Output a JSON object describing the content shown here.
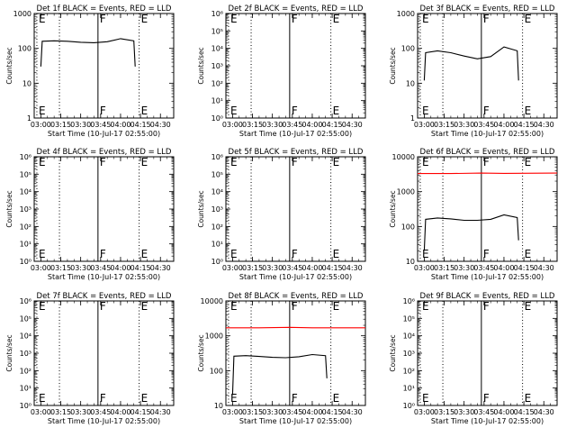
{
  "figure": {
    "x_tick_labels": [
      "03:00",
      "03:15",
      "03:30",
      "03:45",
      "04:00",
      "04:15",
      "04:30"
    ],
    "x_label": "Start Time (10-Jul-17 02:55:00)",
    "y_label": "Counts/sec",
    "colors": {
      "events": "#000000",
      "lld": "#ff0000"
    }
  },
  "chart_data": [
    {
      "type": "line",
      "title": "Det 1f BLACK = Events, RED = LLD",
      "xlabel": "Start Time (10-Jul-17 02:55:00)",
      "ylabel": "Counts/sec",
      "scale": "log",
      "xlim": [
        "02:55",
        "04:40"
      ],
      "ylim": [
        1,
        1000
      ],
      "y_tick_labels": [
        "1",
        "10",
        "100",
        "1000"
      ],
      "markers": [
        {
          "time": "02:57",
          "label": "E",
          "style": "dotted"
        },
        {
          "time": "03:14",
          "label": "",
          "style": "dotted"
        },
        {
          "time": "03:43",
          "label": "F",
          "style": "solid"
        },
        {
          "time": "04:14",
          "label": "E",
          "style": "dotted"
        }
      ],
      "series": [
        {
          "name": "Events",
          "color": "#000000",
          "x": [
            "03:00",
            "03:01",
            "03:10",
            "03:20",
            "03:30",
            "03:40",
            "03:50",
            "04:00",
            "04:10",
            "04:11"
          ],
          "y": [
            30,
            160,
            165,
            160,
            150,
            145,
            155,
            190,
            165,
            30
          ]
        }
      ]
    },
    {
      "type": "line",
      "title": "Det 2f BLACK = Events, RED = LLD",
      "xlabel": "Start Time (10-Jul-17 02:55:00)",
      "ylabel": "Counts/sec",
      "scale": "log",
      "xlim": [
        "02:55",
        "04:40"
      ],
      "ylim": [
        1,
        1000000
      ],
      "y_tick_labels": [
        "10⁰",
        "10¹",
        "10²",
        "10³",
        "10⁴",
        "10⁵",
        "10⁶"
      ],
      "markers": [
        {
          "time": "02:57",
          "label": "E",
          "style": "dotted"
        },
        {
          "time": "03:14",
          "label": "",
          "style": "dotted"
        },
        {
          "time": "03:43",
          "label": "F",
          "style": "solid"
        },
        {
          "time": "04:14",
          "label": "E",
          "style": "dotted"
        }
      ],
      "series": []
    },
    {
      "type": "line",
      "title": "Det 3f BLACK = Events, RED = LLD",
      "xlabel": "Start Time (10-Jul-17 02:55:00)",
      "ylabel": "Counts/sec",
      "scale": "log",
      "xlim": [
        "02:55",
        "04:40"
      ],
      "ylim": [
        1,
        1000
      ],
      "y_tick_labels": [
        "1",
        "10",
        "100",
        "1000"
      ],
      "markers": [
        {
          "time": "02:57",
          "label": "E",
          "style": "dotted"
        },
        {
          "time": "03:14",
          "label": "",
          "style": "dotted"
        },
        {
          "time": "03:43",
          "label": "F",
          "style": "solid"
        },
        {
          "time": "04:14",
          "label": "E",
          "style": "dotted"
        }
      ],
      "series": [
        {
          "name": "Events",
          "color": "#000000",
          "x": [
            "03:00",
            "03:01",
            "03:10",
            "03:20",
            "03:30",
            "03:40",
            "03:50",
            "04:00",
            "04:10",
            "04:11"
          ],
          "y": [
            12,
            75,
            85,
            75,
            60,
            50,
            58,
            110,
            85,
            12
          ]
        }
      ]
    },
    {
      "type": "line",
      "title": "Det 4f BLACK = Events, RED = LLD",
      "xlabel": "Start Time (10-Jul-17 02:55:00)",
      "ylabel": "Counts/sec",
      "scale": "log",
      "xlim": [
        "02:55",
        "04:40"
      ],
      "ylim": [
        1,
        1000000
      ],
      "y_tick_labels": [
        "10⁰",
        "10¹",
        "10²",
        "10³",
        "10⁴",
        "10⁵",
        "10⁶"
      ],
      "markers": [
        {
          "time": "02:57",
          "label": "E",
          "style": "dotted"
        },
        {
          "time": "03:14",
          "label": "",
          "style": "dotted"
        },
        {
          "time": "03:43",
          "label": "F",
          "style": "solid"
        },
        {
          "time": "04:14",
          "label": "E",
          "style": "dotted"
        }
      ],
      "series": []
    },
    {
      "type": "line",
      "title": "Det 5f BLACK = Events, RED = LLD",
      "xlabel": "Start Time (10-Jul-17 02:55:00)",
      "ylabel": "Counts/sec",
      "scale": "log",
      "xlim": [
        "02:55",
        "04:40"
      ],
      "ylim": [
        1,
        1000000
      ],
      "y_tick_labels": [
        "10⁰",
        "10¹",
        "10²",
        "10³",
        "10⁴",
        "10⁵",
        "10⁶"
      ],
      "markers": [
        {
          "time": "02:57",
          "label": "E",
          "style": "dotted"
        },
        {
          "time": "03:14",
          "label": "",
          "style": "dotted"
        },
        {
          "time": "03:43",
          "label": "F",
          "style": "solid"
        },
        {
          "time": "04:14",
          "label": "E",
          "style": "dotted"
        }
      ],
      "series": []
    },
    {
      "type": "line",
      "title": "Det 6f BLACK = Events, RED = LLD",
      "xlabel": "Start Time (10-Jul-17 02:55:00)",
      "ylabel": "Counts/sec",
      "scale": "log",
      "xlim": [
        "02:55",
        "04:40"
      ],
      "ylim": [
        10,
        10000
      ],
      "y_tick_labels": [
        "10",
        "100",
        "1000",
        "10000"
      ],
      "markers": [
        {
          "time": "02:57",
          "label": "E",
          "style": "dotted"
        },
        {
          "time": "03:14",
          "label": "",
          "style": "dotted"
        },
        {
          "time": "03:43",
          "label": "F",
          "style": "solid"
        },
        {
          "time": "04:14",
          "label": "E",
          "style": "dotted"
        }
      ],
      "series": [
        {
          "name": "LLD",
          "color": "#ff0000",
          "x": [
            "02:55",
            "03:20",
            "03:43",
            "04:00",
            "04:40"
          ],
          "y": [
            3300,
            3300,
            3400,
            3350,
            3400
          ]
        },
        {
          "name": "Events",
          "color": "#000000",
          "x": [
            "03:00",
            "03:01",
            "03:10",
            "03:20",
            "03:30",
            "03:40",
            "03:50",
            "04:00",
            "04:10",
            "04:11"
          ],
          "y": [
            20,
            160,
            175,
            165,
            150,
            150,
            160,
            215,
            180,
            40
          ]
        }
      ]
    },
    {
      "type": "line",
      "title": "Det 7f BLACK = Events, RED = LLD",
      "xlabel": "Start Time (10-Jul-17 02:55:00)",
      "ylabel": "Counts/sec",
      "scale": "log",
      "xlim": [
        "02:55",
        "04:40"
      ],
      "ylim": [
        1,
        1000000
      ],
      "y_tick_labels": [
        "10⁰",
        "10¹",
        "10²",
        "10³",
        "10⁴",
        "10⁵",
        "10⁶"
      ],
      "markers": [
        {
          "time": "02:57",
          "label": "E",
          "style": "dotted"
        },
        {
          "time": "03:14",
          "label": "",
          "style": "dotted"
        },
        {
          "time": "03:43",
          "label": "F",
          "style": "solid"
        },
        {
          "time": "04:14",
          "label": "E",
          "style": "dotted"
        }
      ],
      "series": []
    },
    {
      "type": "line",
      "title": "Det 8f BLACK = Events, RED = LLD",
      "xlabel": "Start Time (10-Jul-17 02:55:00)",
      "ylabel": "Counts/sec",
      "scale": "log",
      "xlim": [
        "02:55",
        "04:40"
      ],
      "ylim": [
        10,
        10000
      ],
      "y_tick_labels": [
        "10",
        "100",
        "1000",
        "10000"
      ],
      "markers": [
        {
          "time": "02:57",
          "label": "E",
          "style": "dotted"
        },
        {
          "time": "03:14",
          "label": "",
          "style": "dotted"
        },
        {
          "time": "03:43",
          "label": "F",
          "style": "solid"
        },
        {
          "time": "04:14",
          "label": "E",
          "style": "dotted"
        }
      ],
      "series": [
        {
          "name": "LLD",
          "color": "#ff0000",
          "x": [
            "02:55",
            "03:20",
            "03:43",
            "04:00",
            "04:40"
          ],
          "y": [
            1700,
            1700,
            1750,
            1700,
            1700
          ]
        },
        {
          "name": "Events",
          "color": "#000000",
          "x": [
            "03:00",
            "03:01",
            "03:10",
            "03:20",
            "03:30",
            "03:40",
            "03:50",
            "04:00",
            "04:10",
            "04:11"
          ],
          "y": [
            20,
            260,
            270,
            255,
            240,
            235,
            250,
            290,
            270,
            60
          ]
        }
      ]
    },
    {
      "type": "line",
      "title": "Det 9f BLACK = Events, RED = LLD",
      "xlabel": "Start Time (10-Jul-17 02:55:00)",
      "ylabel": "Counts/sec",
      "scale": "log",
      "xlim": [
        "02:55",
        "04:40"
      ],
      "ylim": [
        1,
        1000000
      ],
      "y_tick_labels": [
        "10⁰",
        "10¹",
        "10²",
        "10³",
        "10⁴",
        "10⁵",
        "10⁶"
      ],
      "markers": [
        {
          "time": "02:57",
          "label": "E",
          "style": "dotted"
        },
        {
          "time": "03:14",
          "label": "",
          "style": "dotted"
        },
        {
          "time": "03:43",
          "label": "F",
          "style": "solid"
        },
        {
          "time": "04:14",
          "label": "E",
          "style": "dotted"
        }
      ],
      "series": []
    }
  ]
}
